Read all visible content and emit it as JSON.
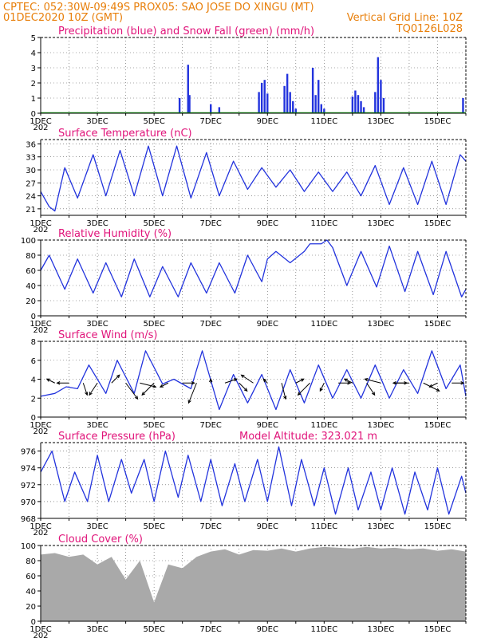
{
  "header": {
    "line1": "CPTEC:   052:30W-09:49S   PROX05: SAO JOSE DO XINGU (MT)",
    "date": "01DEC2020 10Z (GMT)",
    "grid_note": "Vertical Grid Line: 10Z",
    "code": "TQ0126L028"
  },
  "x_axis": {
    "labels": [
      "1DEC",
      "3DEC",
      "5DEC",
      "7DEC",
      "9DEC",
      "11DEC",
      "13DEC",
      "15DEC"
    ],
    "year_fragment": "202"
  },
  "colors": {
    "line": "#2233dd",
    "rain": "#2233dd",
    "snow": "#10aa10",
    "cloud": "#a9a9a9",
    "title": "#e0147a",
    "header": "#e87f0a"
  },
  "chart_data": [
    {
      "id": "precip",
      "type": "bar",
      "title": "Precipitation (blue) and Snow Fall (green) (mm/h)",
      "ylim": [
        0,
        5
      ],
      "yticks": [
        0,
        1,
        2,
        3,
        4,
        5
      ],
      "series": [
        {
          "name": "Precipitation",
          "x_day": [
            5.9,
            6.2,
            6.25,
            7.0,
            7.3,
            8.7,
            8.8,
            8.9,
            9.0,
            9.6,
            9.7,
            9.8,
            9.9,
            10.0,
            10.6,
            10.7,
            10.8,
            10.9,
            11.0,
            12.0,
            12.1,
            12.2,
            12.3,
            12.4,
            12.8,
            12.9,
            13.0,
            13.1,
            15.9
          ],
          "values": [
            1.0,
            3.2,
            1.2,
            0.6,
            0.4,
            1.4,
            2.0,
            2.2,
            1.3,
            1.8,
            2.6,
            1.4,
            0.8,
            0.3,
            3.0,
            1.2,
            2.2,
            0.6,
            0.3,
            1.1,
            1.5,
            1.2,
            0.8,
            0.4,
            1.4,
            3.7,
            2.2,
            1.0,
            1.0
          ]
        },
        {
          "name": "Snow Fall",
          "values": [
            0
          ]
        }
      ]
    },
    {
      "id": "temp",
      "type": "line",
      "title": "Surface Temperature (nC)",
      "ylim": [
        19.5,
        37
      ],
      "yticks": [
        21,
        24,
        27,
        30,
        33,
        36
      ],
      "x_day": [
        1.0,
        1.3,
        1.5,
        1.85,
        2.3,
        2.85,
        3.3,
        3.8,
        4.3,
        4.8,
        5.3,
        5.8,
        6.3,
        6.85,
        7.3,
        7.8,
        8.3,
        8.8,
        9.3,
        9.8,
        10.3,
        10.8,
        11.3,
        11.8,
        12.3,
        12.8,
        13.3,
        13.8,
        14.3,
        14.8,
        15.3,
        15.8,
        16.0
      ],
      "values": [
        25,
        21.5,
        20.5,
        30.5,
        23.5,
        33.5,
        24,
        34.5,
        24,
        35.5,
        24,
        35.5,
        23.5,
        34,
        24,
        32,
        25.5,
        30.5,
        26,
        30,
        25,
        29.5,
        25,
        29.5,
        24,
        31,
        22,
        30.5,
        22,
        32,
        22,
        33.5,
        32
      ]
    },
    {
      "id": "rh",
      "type": "line",
      "title": "Relative Humidity (%)",
      "ylim": [
        0,
        100
      ],
      "yticks": [
        0,
        20,
        40,
        60,
        80,
        100
      ],
      "x_day": [
        1.0,
        1.3,
        1.85,
        2.3,
        2.85,
        3.3,
        3.85,
        4.3,
        4.85,
        5.3,
        5.85,
        6.3,
        6.85,
        7.3,
        7.85,
        8.3,
        8.8,
        9.0,
        9.3,
        9.8,
        10.3,
        10.5,
        10.9,
        11.1,
        11.3,
        11.8,
        12.3,
        12.85,
        13.3,
        13.85,
        14.3,
        14.85,
        15.3,
        15.85,
        16.0
      ],
      "values": [
        60,
        80,
        35,
        75,
        30,
        70,
        25,
        75,
        25,
        65,
        25,
        70,
        30,
        70,
        30,
        80,
        45,
        75,
        85,
        70,
        85,
        95,
        95,
        100,
        90,
        40,
        85,
        38,
        92,
        32,
        85,
        28,
        85,
        25,
        35
      ]
    },
    {
      "id": "wind",
      "type": "line",
      "title": "Surface Wind (m/s)",
      "ylim": [
        0,
        8
      ],
      "yticks": [
        0,
        2,
        4,
        6,
        8
      ],
      "x_day": [
        1.0,
        1.5,
        1.9,
        2.3,
        2.7,
        3.3,
        3.7,
        4.3,
        4.7,
        5.3,
        5.7,
        6.3,
        6.7,
        7.3,
        7.8,
        8.3,
        8.8,
        9.3,
        9.8,
        10.3,
        10.8,
        11.3,
        11.8,
        12.3,
        12.8,
        13.3,
        13.8,
        14.3,
        14.8,
        15.3,
        15.8,
        16.0
      ],
      "values": [
        2.2,
        2.5,
        3.2,
        3.0,
        5.5,
        2.5,
        6.0,
        2.5,
        7.0,
        3.5,
        4.0,
        3.0,
        7.0,
        0.8,
        4.5,
        1.5,
        4.5,
        0.8,
        5.0,
        1.5,
        5.5,
        2.0,
        5.0,
        2.0,
        5.5,
        2.0,
        5.0,
        2.5,
        7.0,
        3.0,
        5.5,
        2.2
      ],
      "arrows": {
        "x_day": [
          1.5,
          2.0,
          2.5,
          3.0,
          3.5,
          4.0,
          4.5,
          5.0,
          5.5,
          6.0,
          6.5,
          7.0,
          7.5,
          8.0,
          8.5,
          9.0,
          9.5,
          10.0,
          10.5,
          11.0,
          11.5,
          12.0,
          12.5,
          13.0,
          13.5,
          14.0,
          14.5,
          15.0,
          15.5
        ],
        "u_ms": [
          -2,
          -3,
          1,
          -2,
          2,
          3,
          4,
          -3,
          -2,
          3,
          -2,
          0,
          3,
          2,
          -3,
          -1,
          1,
          2,
          -3,
          -1,
          3,
          -2,
          2,
          -4,
          3,
          -4,
          4,
          -2,
          3
        ],
        "v_ms": [
          1,
          0,
          -3,
          -3,
          2,
          -4,
          -1,
          -3,
          -1,
          0,
          -5,
          1,
          1,
          -2,
          2,
          1,
          -4,
          1,
          -3,
          -2,
          0,
          1,
          -3,
          1,
          0,
          0,
          -2,
          -1,
          0
        ]
      }
    },
    {
      "id": "pres",
      "type": "line",
      "title": "Surface Pressure (hPa)",
      "subtitle": "Model Altitude: 323.021 m",
      "ylim": [
        968,
        977
      ],
      "yticks": [
        968,
        970,
        972,
        974,
        976
      ],
      "x_day": [
        1.0,
        1.4,
        1.85,
        2.2,
        2.65,
        3.0,
        3.4,
        3.85,
        4.2,
        4.65,
        5.0,
        5.4,
        5.85,
        6.2,
        6.65,
        7.0,
        7.4,
        7.85,
        8.2,
        8.65,
        9.0,
        9.4,
        9.85,
        10.2,
        10.65,
        11.0,
        11.4,
        11.85,
        12.2,
        12.65,
        13.0,
        13.4,
        13.85,
        14.2,
        14.65,
        15.0,
        15.4,
        15.85,
        16.0
      ],
      "values": [
        973.5,
        976,
        970,
        973.5,
        970,
        975.5,
        970,
        975,
        971,
        975,
        970,
        976,
        970.5,
        975.5,
        970,
        975,
        969.5,
        974.5,
        970,
        975,
        970,
        976.5,
        969.5,
        975,
        969.5,
        974,
        968.5,
        974,
        969,
        973.5,
        969,
        974,
        968.5,
        973.5,
        969,
        974,
        968.5,
        973,
        971
      ]
    },
    {
      "id": "cloud",
      "type": "area",
      "title": "Cloud Cover (%)",
      "ylim": [
        0,
        100
      ],
      "yticks": [
        0,
        20,
        40,
        60,
        80,
        100
      ],
      "x_day": [
        1.0,
        1.5,
        2.0,
        2.5,
        3.0,
        3.5,
        4.0,
        4.5,
        5.0,
        5.5,
        6.0,
        6.5,
        7.0,
        7.5,
        8.0,
        8.5,
        9.0,
        9.5,
        10.0,
        10.5,
        11.0,
        11.5,
        12.0,
        12.5,
        13.0,
        13.5,
        14.0,
        14.5,
        15.0,
        15.5,
        16.0
      ],
      "values": [
        88,
        90,
        85,
        88,
        75,
        85,
        55,
        80,
        25,
        75,
        70,
        85,
        92,
        95,
        88,
        94,
        93,
        96,
        92,
        96,
        98,
        97,
        96,
        98,
        96,
        97,
        95,
        96,
        93,
        95,
        92
      ]
    }
  ]
}
